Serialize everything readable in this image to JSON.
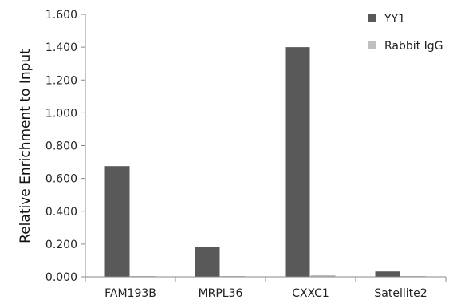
{
  "chart_data": {
    "type": "bar",
    "title": "",
    "xlabel": "",
    "ylabel": "Relative Enrichment to Input",
    "ylim": [
      0,
      1.6
    ],
    "yticks": [
      "0.000",
      "0.200",
      "0.400",
      "0.600",
      "0.800",
      "1.000",
      "1.200",
      "1.400",
      "1.600"
    ],
    "categories": [
      "FAM193B",
      "MRPL36",
      "CXXC1",
      "Satellite2"
    ],
    "series": [
      {
        "name": "YY1",
        "values": [
          0.675,
          0.18,
          1.4,
          0.033
        ],
        "color": "#595959"
      },
      {
        "name": "Rabbit IgG",
        "values": [
          0.002,
          0.002,
          0.01,
          0.002
        ],
        "color": "#bfbfbf"
      }
    ],
    "legend_position": "top-right",
    "grid": false
  }
}
